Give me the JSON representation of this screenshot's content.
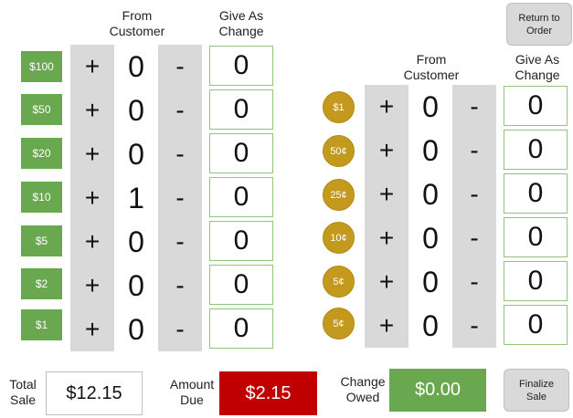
{
  "headers": {
    "bills_from_line1": "From",
    "bills_from_line2": "Customer",
    "bills_change_line1": "Give As",
    "bills_change_line2": "Change",
    "coins_from_line1": "From",
    "coins_from_line2": "Customer",
    "coins_change_line1": "Give As",
    "coins_change_line2": "Change"
  },
  "controls": {
    "plus": "+",
    "minus": "-"
  },
  "buttons": {
    "return_line1": "Return to",
    "return_line2": "Order",
    "finalize_line1": "Finalize",
    "finalize_line2": "Sale"
  },
  "bills": [
    {
      "label": "$100",
      "from": "0",
      "change": "0"
    },
    {
      "label": "$50",
      "from": "0",
      "change": "0"
    },
    {
      "label": "$20",
      "from": "0",
      "change": "0"
    },
    {
      "label": "$10",
      "from": "1",
      "change": "0"
    },
    {
      "label": "$5",
      "from": "0",
      "change": "0"
    },
    {
      "label": "$2",
      "from": "0",
      "change": "0"
    },
    {
      "label": "$1",
      "from": "0",
      "change": "0"
    }
  ],
  "coins": [
    {
      "label": "$1",
      "from": "0",
      "change": "0"
    },
    {
      "label": "50¢",
      "from": "0",
      "change": "0"
    },
    {
      "label": "25¢",
      "from": "0",
      "change": "0"
    },
    {
      "label": "10¢",
      "from": "0",
      "change": "0"
    },
    {
      "label": "5¢",
      "from": "0",
      "change": "0"
    },
    {
      "label": "5¢",
      "from": "0",
      "change": "0"
    }
  ],
  "summary": {
    "total_label_line1": "Total",
    "total_label_line2": "Sale",
    "total_value": "$12.15",
    "due_label_line1": "Amount",
    "due_label_line2": "Due",
    "due_value": "$2.15",
    "owed_label_line1": "Change",
    "owed_label_line2": "Owed",
    "owed_value": "$0.00"
  },
  "colors": {
    "bill_green": "#6aa84f",
    "coin_gold": "#c49a1e",
    "due_red": "#c00000",
    "button_gray": "#d9d9d9"
  }
}
